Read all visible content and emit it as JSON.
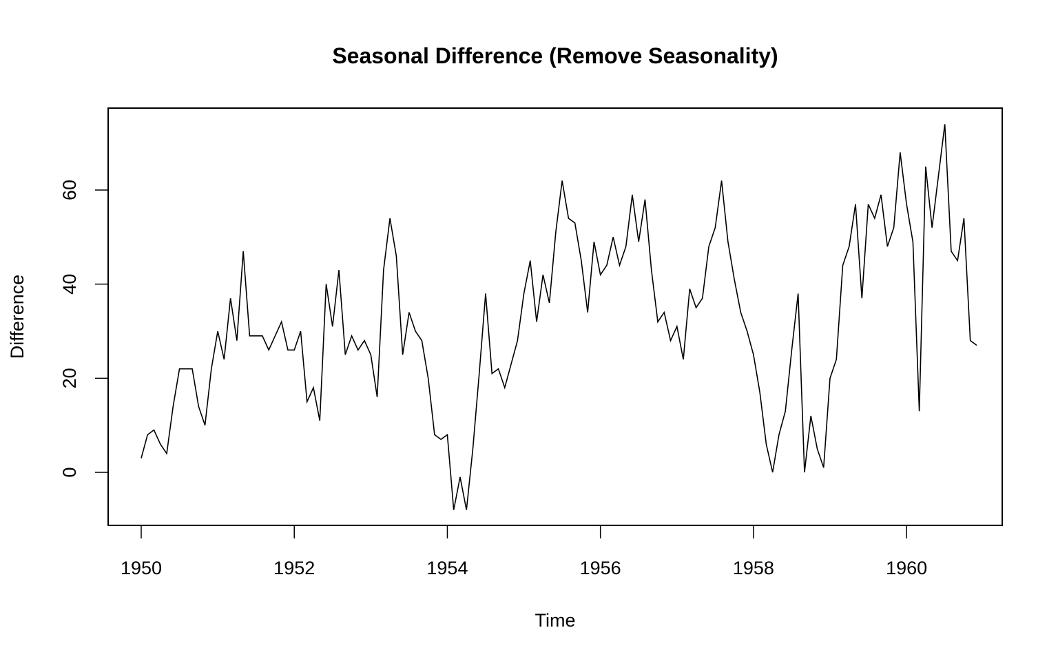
{
  "chart_data": {
    "type": "line",
    "title": "Seasonal Difference (Remove Seasonality)",
    "xlabel": "Time",
    "ylabel": "Difference",
    "xlim": [
      1949.568,
      1961.25
    ],
    "ylim": [
      -11.27,
      77.42
    ],
    "x_ticks": [
      1950,
      1952,
      1954,
      1956,
      1958,
      1960
    ],
    "x_tick_labels": [
      "1950",
      "1952",
      "1954",
      "1956",
      "1958",
      "1960"
    ],
    "y_ticks": [
      0,
      20,
      40,
      60
    ],
    "y_tick_labels": [
      "0",
      "20",
      "40",
      "60"
    ],
    "grid": false,
    "legend": "none",
    "line_color": "#000000",
    "x_start": 1950,
    "frequency": 12,
    "series": [
      {
        "name": "Difference",
        "values": [
          3,
          8,
          9,
          6,
          4,
          14,
          22,
          22,
          22,
          14,
          10,
          22,
          30,
          24,
          37,
          28,
          47,
          29,
          29,
          29,
          26,
          29,
          32,
          26,
          26,
          30,
          15,
          18,
          11,
          40,
          31,
          43,
          25,
          29,
          26,
          28,
          25,
          16,
          43,
          54,
          46,
          25,
          34,
          30,
          28,
          20,
          8,
          7,
          8,
          -8,
          -1,
          -8,
          5,
          21,
          38,
          21,
          22,
          18,
          23,
          28,
          38,
          45,
          32,
          42,
          36,
          51,
          62,
          54,
          53,
          45,
          34,
          49,
          42,
          44,
          50,
          44,
          48,
          59,
          49,
          58,
          43,
          32,
          34,
          28,
          31,
          24,
          39,
          35,
          37,
          48,
          52,
          62,
          49,
          41,
          34,
          30,
          25,
          17,
          6,
          0,
          8,
          13,
          26,
          38,
          0,
          12,
          5,
          1,
          20,
          24,
          44,
          48,
          57,
          37,
          57,
          54,
          59,
          48,
          52,
          68,
          57,
          49,
          13,
          65,
          52,
          63,
          74,
          47,
          45,
          54,
          28,
          27
        ]
      }
    ]
  }
}
